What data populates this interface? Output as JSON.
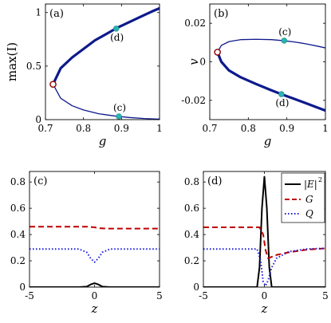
{
  "chart_data": [
    {
      "panel": "(a)",
      "type": "line",
      "xlabel": "g",
      "ylabel": "max(I)",
      "xlim": [
        0.7,
        1.0
      ],
      "ylim": [
        0,
        1.08
      ],
      "xticks": [
        "0.7",
        "0.8",
        "0.9",
        "1"
      ],
      "yticks": [
        "0",
        "0.5",
        "1"
      ],
      "series": [
        {
          "style": "thick",
          "x": [
            0.72,
            0.74,
            0.77,
            0.8,
            0.83,
            0.86,
            0.89,
            0.92,
            0.95,
            0.98,
            1.0
          ],
          "y": [
            0.33,
            0.48,
            0.58,
            0.66,
            0.74,
            0.8,
            0.86,
            0.91,
            0.96,
            1.01,
            1.04
          ]
        },
        {
          "style": "thin",
          "x": [
            0.72,
            0.74,
            0.77,
            0.8,
            0.84,
            0.88,
            0.92,
            0.96,
            1.0
          ],
          "y": [
            0.33,
            0.2,
            0.13,
            0.09,
            0.055,
            0.035,
            0.02,
            0.01,
            0.004
          ]
        }
      ],
      "markers": [
        {
          "label": "(d)",
          "x": 0.886,
          "y": 0.85,
          "kind": "filled"
        },
        {
          "label": "(c)",
          "x": 0.893,
          "y": 0.03,
          "kind": "filled"
        },
        {
          "label": "",
          "x": 0.72,
          "y": 0.33,
          "kind": "open"
        }
      ]
    },
    {
      "panel": "(b)",
      "type": "line",
      "xlabel": "g",
      "ylabel": "v",
      "xlim": [
        0.7,
        1.0
      ],
      "ylim": [
        -0.03,
        0.03
      ],
      "xticks": [
        "0.7",
        "0.8",
        "0.9",
        "1"
      ],
      "yticks": [
        "-0.02",
        "0",
        "0.02"
      ],
      "series": [
        {
          "style": "thin",
          "x": [
            0.72,
            0.73,
            0.75,
            0.78,
            0.82,
            0.86,
            0.89,
            0.92,
            0.95,
            0.98,
            1.0
          ],
          "y": [
            0.005,
            0.0085,
            0.0105,
            0.0115,
            0.0117,
            0.0115,
            0.011,
            0.0103,
            0.0093,
            0.0081,
            0.0072
          ]
        },
        {
          "style": "thick",
          "x": [
            0.72,
            0.73,
            0.75,
            0.78,
            0.82,
            0.86,
            0.89,
            0.92,
            0.95,
            0.98,
            1.0
          ],
          "y": [
            0.005,
            0.0,
            -0.0045,
            -0.008,
            -0.0115,
            -0.0148,
            -0.0171,
            -0.0193,
            -0.0215,
            -0.0238,
            -0.0253
          ]
        }
      ],
      "markers": [
        {
          "label": "(c)",
          "x": 0.893,
          "y": 0.011,
          "kind": "filled"
        },
        {
          "label": "(d)",
          "x": 0.886,
          "y": -0.0168,
          "kind": "filled"
        },
        {
          "label": "",
          "x": 0.72,
          "y": 0.005,
          "kind": "open"
        }
      ]
    },
    {
      "panel": "(c)",
      "type": "line",
      "xlabel": "z",
      "ylabel": "",
      "xlim": [
        -5,
        5
      ],
      "ylim": [
        0,
        0.88
      ],
      "xticks": [
        "-5",
        "0",
        "5"
      ],
      "yticks": [
        "0",
        "0.2",
        "0.4",
        "0.6",
        "0.8"
      ],
      "series": [
        {
          "name": "|E|^2",
          "style": "solid",
          "x": [
            -5,
            -1.2,
            -0.6,
            -0.3,
            0,
            0.3,
            0.6,
            1.2,
            5
          ],
          "y": [
            0,
            0,
            0.004,
            0.02,
            0.03,
            0.02,
            0.004,
            0,
            0
          ]
        },
        {
          "name": "G",
          "style": "dashed",
          "x": [
            -5,
            -0.5,
            0,
            0.4,
            0.8,
            1.5,
            5
          ],
          "y": [
            0.46,
            0.46,
            0.455,
            0.448,
            0.446,
            0.445,
            0.445
          ]
        },
        {
          "name": "Q",
          "style": "dotted",
          "x": [
            -5,
            -1.2,
            -0.6,
            -0.3,
            0,
            0.3,
            0.6,
            1.2,
            5
          ],
          "y": [
            0.29,
            0.29,
            0.265,
            0.22,
            0.19,
            0.22,
            0.265,
            0.29,
            0.29
          ]
        }
      ]
    },
    {
      "panel": "(d)",
      "type": "line",
      "xlabel": "z",
      "ylabel": "",
      "xlim": [
        -5,
        5
      ],
      "ylim": [
        0,
        0.88
      ],
      "xticks": [
        "-5",
        "0",
        "5"
      ],
      "yticks": [
        "0",
        "0.2",
        "0.4",
        "0.6",
        "0.8"
      ],
      "legend": {
        "position": "top-right",
        "entries": [
          "|E|",
          "2",
          "G",
          "Q"
        ]
      },
      "series": [
        {
          "name": "|E|^2",
          "style": "solid",
          "x": [
            -5,
            -0.6,
            -0.4,
            -0.2,
            0,
            0.2,
            0.4,
            0.6,
            5
          ],
          "y": [
            0,
            0,
            0.15,
            0.6,
            0.84,
            0.6,
            0.15,
            0,
            0
          ]
        },
        {
          "name": "G",
          "style": "dashed",
          "x": [
            -5,
            -0.4,
            -0.1,
            0.1,
            0.3,
            0.6,
            1.0,
            2.0,
            3.5,
            5
          ],
          "y": [
            0.455,
            0.455,
            0.4,
            0.28,
            0.22,
            0.23,
            0.245,
            0.265,
            0.285,
            0.295
          ]
        },
        {
          "name": "Q",
          "style": "dotted",
          "x": [
            -5,
            -0.6,
            -0.3,
            -0.1,
            0.1,
            0.3,
            0.6,
            1.0,
            2.0,
            3.5,
            5
          ],
          "y": [
            0.29,
            0.29,
            0.2,
            0.04,
            0.01,
            0.05,
            0.15,
            0.22,
            0.27,
            0.29,
            0.295
          ]
        }
      ]
    }
  ]
}
